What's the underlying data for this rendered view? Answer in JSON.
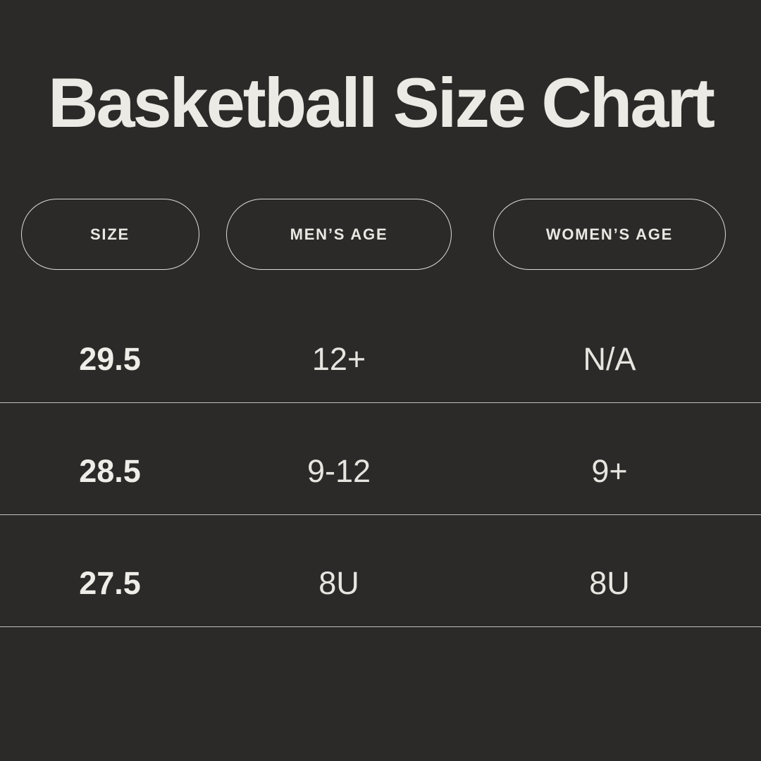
{
  "title": "Basketball Size Chart",
  "theme": {
    "background": "#2b2a28",
    "text": "#ebe9e4",
    "line": "#d9d6d0"
  },
  "chart_data": {
    "type": "table",
    "title": "Basketball Size Chart",
    "columns": [
      "SIZE",
      "MEN’S AGE",
      "WOMEN’S AGE"
    ],
    "rows": [
      [
        "29.5",
        "12+",
        "N/A"
      ],
      [
        "28.5",
        "9-12",
        "9+"
      ],
      [
        "27.5",
        "8U",
        "8U"
      ]
    ]
  }
}
